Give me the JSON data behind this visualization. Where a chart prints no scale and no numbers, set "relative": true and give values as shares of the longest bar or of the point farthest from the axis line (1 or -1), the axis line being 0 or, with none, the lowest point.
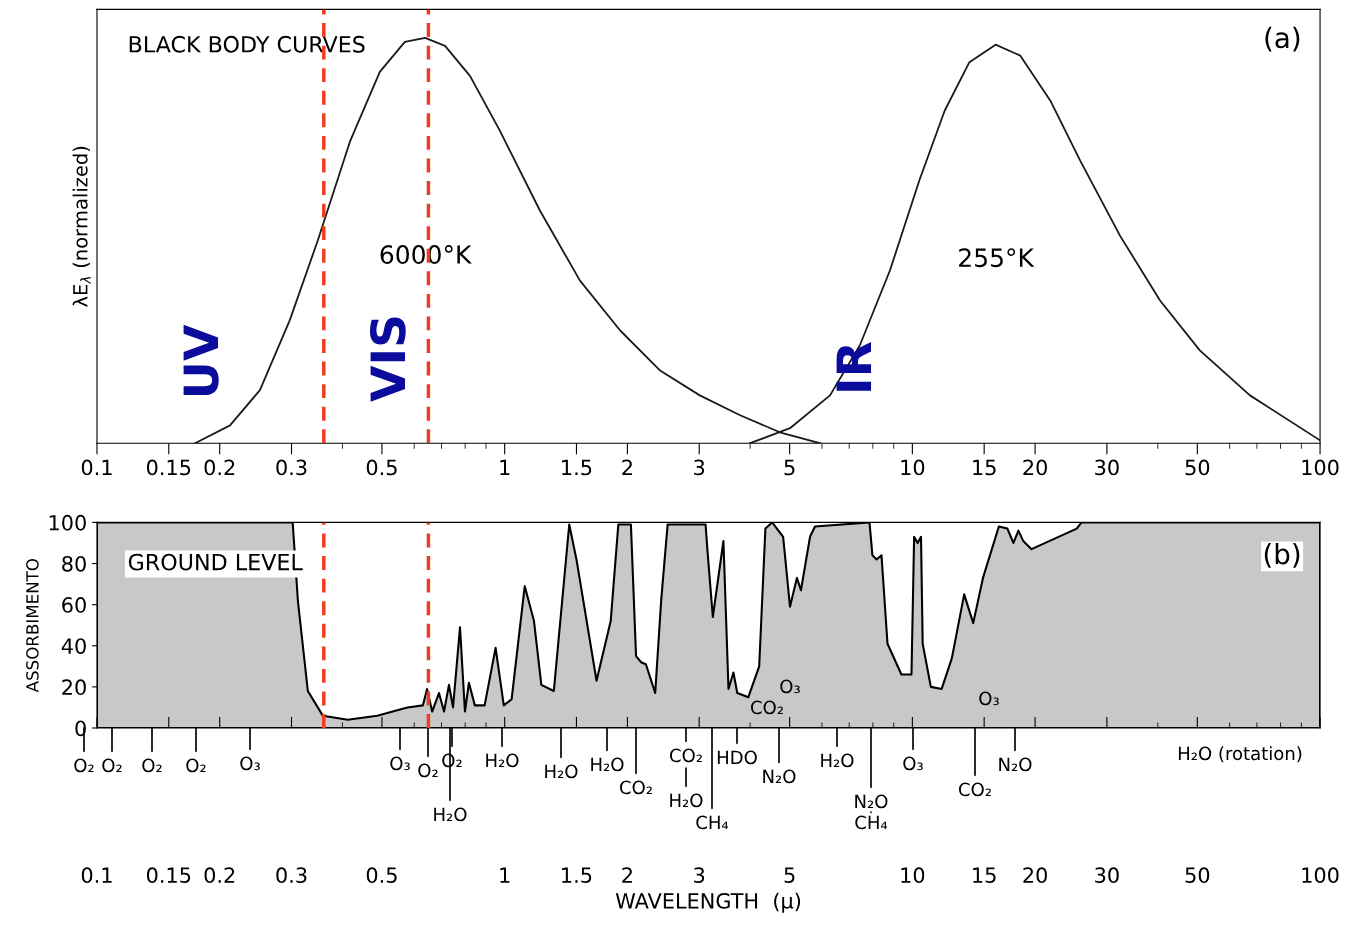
{
  "chart_data": [
    {
      "type": "line",
      "title": "BLACK BODY CURVES",
      "ylabel": "λE$_{λ}$ (normalized)",
      "relative": true,
      "log": "x",
      "xlim": [
        0.1,
        100
      ],
      "xticks": [
        0.1,
        0.15,
        0.2,
        0.3,
        0.5,
        1,
        1.5,
        2,
        3,
        5,
        10,
        15,
        20,
        30,
        50,
        100
      ],
      "grid": false,
      "legend": false,
      "marker": "none",
      "line_style": "solid",
      "series": [
        {
          "name": "6000°K",
          "color": "#1a1a1a",
          "x": [
            0.174,
            0.212,
            0.251,
            0.297,
            0.348,
            0.418,
            0.494,
            0.569,
            0.638,
            0.714,
            0.822,
            0.973,
            1.22,
            1.53,
            1.92,
            2.4,
            3.01,
            3.78,
            4.73,
            5.93
          ],
          "values": [
            0,
            0.044,
            0.131,
            0.303,
            0.5,
            0.746,
            0.916,
            0.99,
            1,
            0.98,
            0.906,
            0.771,
            0.574,
            0.401,
            0.278,
            0.18,
            0.118,
            0.069,
            0.027,
            0
          ]
        },
        {
          "name": "255°K",
          "color": "#1a1a1a",
          "x": [
            4.0,
            5.01,
            6.28,
            7.43,
            8.81,
            10.4,
            12.0,
            13.8,
            16.0,
            18.4,
            21.8,
            25.8,
            32.3,
            40.5,
            50.7,
            67.3,
            100
          ],
          "values": [
            0,
            0.037,
            0.118,
            0.241,
            0.426,
            0.648,
            0.82,
            0.94,
            0.983,
            0.956,
            0.845,
            0.697,
            0.512,
            0.352,
            0.229,
            0.118,
            0.007
          ]
        }
      ],
      "ref_lines": [
        {
          "axis": "x",
          "value": 0.36,
          "color": "#f03c1e",
          "line_style": "dashed"
        },
        {
          "axis": "x",
          "value": 0.65,
          "color": "#f03c1e",
          "line_style": "dashed"
        }
      ],
      "annotations": [
        "(a)",
        "UV",
        "VIS",
        "IR"
      ]
    },
    {
      "type": "area",
      "title": "GROUND LEVEL",
      "ylabel": "ASSORBIMENTO",
      "xlabel": "WAVELENGTH  (μ)",
      "log": "x",
      "xlim": [
        0.1,
        100
      ],
      "xticks": [
        0.1,
        0.15,
        0.2,
        0.3,
        0.5,
        1,
        1.5,
        2,
        3,
        5,
        10,
        15,
        20,
        30,
        50,
        100
      ],
      "ylim": [
        0,
        100
      ],
      "yticks": [
        0,
        20,
        40,
        60,
        80,
        100
      ],
      "grid": false,
      "legend": false,
      "series": [
        {
          "color": "#c8c8c8",
          "x": [
            0.1,
            0.302,
            0.311,
            0.329,
            0.358,
            0.412,
            0.487,
            0.577,
            0.63,
            0.645,
            0.664,
            0.69,
            0.71,
            0.73,
            0.747,
            0.777,
            0.799,
            0.817,
            0.845,
            0.893,
            0.95,
            0.995,
            1.04,
            1.12,
            1.18,
            1.23,
            1.32,
            1.44,
            1.5,
            1.68,
            1.82,
            1.9,
            2.04,
            2.1,
            2.16,
            2.22,
            2.34,
            2.42,
            2.51,
            3.11,
            3.15,
            3.24,
            3.44,
            3.54,
            3.64,
            3.72,
            3.96,
            4.21,
            4.36,
            4.53,
            4.82,
            5.01,
            5.21,
            5.33,
            5.61,
            5.77,
            7.85,
            7.98,
            8.17,
            8.4,
            8.69,
            9.4,
            9.95,
            10.1,
            10.3,
            10.5,
            10.6,
            11.1,
            11.8,
            12.5,
            13.4,
            14.1,
            14.9,
            16.3,
            17.1,
            17.7,
            18.2,
            18.7,
            19.6,
            25.3,
            26.0,
            100
          ],
          "values": [
            100,
            100,
            62,
            18,
            6,
            4,
            6,
            10,
            11,
            19,
            8,
            17,
            8,
            21,
            10,
            49,
            8,
            22,
            11,
            11,
            39,
            11,
            14,
            69,
            52,
            21,
            18,
            99,
            82,
            23,
            52,
            99,
            99,
            35,
            32,
            31,
            17,
            62,
            99,
            99,
            84,
            54,
            91,
            19,
            27,
            17,
            15,
            30,
            97,
            100,
            93,
            59,
            73,
            67,
            93,
            98,
            100,
            84,
            82,
            84,
            41,
            26,
            26,
            93,
            90,
            93,
            41,
            20,
            19,
            34,
            65,
            51,
            73,
            98,
            97,
            90,
            96,
            91,
            87,
            97,
            100,
            100
          ]
        }
      ],
      "ref_lines": [
        {
          "axis": "x",
          "value": 0.36,
          "color": "#f03c1e",
          "line_style": "dashed"
        },
        {
          "axis": "x",
          "value": 0.65,
          "color": "#f03c1e",
          "line_style": "dashed"
        }
      ],
      "annotations": [
        "(b)",
        "O₂",
        "O₂",
        "O₂",
        "O₂",
        "O₃",
        "O₃",
        "O₂",
        "O₂",
        "H₂O",
        "H₂O",
        "H₂O",
        "H₂O",
        "CO₂",
        "CO₂",
        "H₂O",
        "CH₄",
        "HDO",
        "CO₂",
        "O₃",
        "N₂O",
        "H₂O",
        "N₂O",
        "CH₄",
        "O₃",
        "CO₂",
        "O₃",
        "N₂O",
        "H₂O (rotation)"
      ]
    }
  ]
}
